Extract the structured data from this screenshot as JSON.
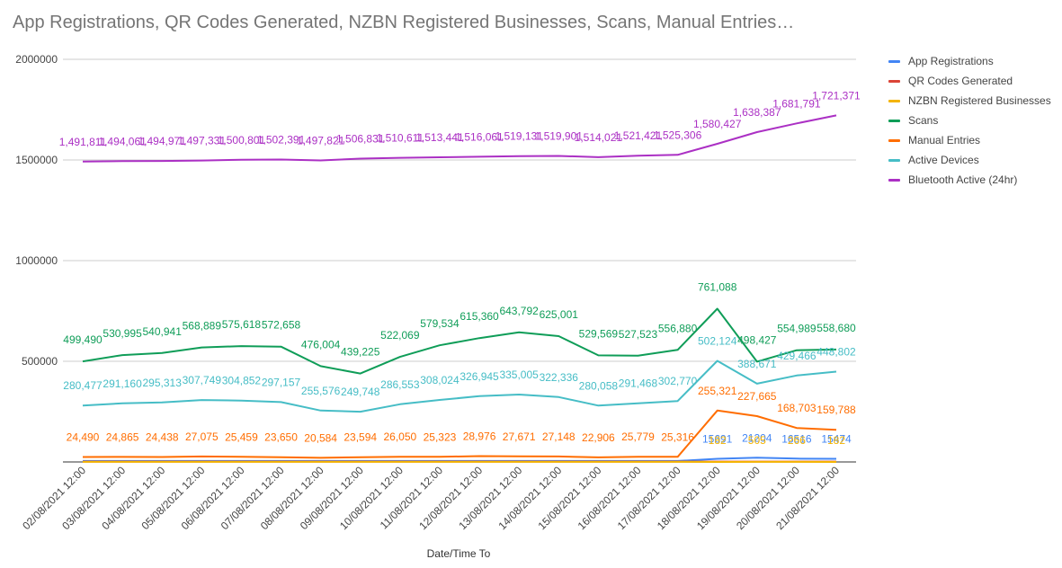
{
  "title": "App Registrations, QR Codes Generated, NZBN Registered Businesses, Scans, Manual Entries…",
  "chart_data": {
    "type": "line",
    "title": "App Registrations, QR Codes Generated, NZBN Registered Businesses, Scans, Manual Entries…",
    "xlabel": "Date/Time To",
    "ylabel": "",
    "ylim": [
      0,
      2000000
    ],
    "yticks": [
      500000,
      1000000,
      1500000,
      2000000
    ],
    "ytick_labels": [
      "500000",
      "1000000",
      "1500000",
      "2000000"
    ],
    "grid": true,
    "legend_position": "right",
    "categories": [
      "02/08/2021 12:00",
      "03/08/2021 12:00",
      "04/08/2021 12:00",
      "05/08/2021 12:00",
      "06/08/2021 12:00",
      "07/08/2021 12:00",
      "08/08/2021 12:00",
      "09/08/2021 12:00",
      "10/08/2021 12:00",
      "11/08/2021 12:00",
      "12/08/2021 12:00",
      "13/08/2021 12:00",
      "14/08/2021 12:00",
      "15/08/2021 12:00",
      "16/08/2021 12:00",
      "17/08/2021 12:00",
      "18/08/2021 12:00",
      "19/08/2021 12:00",
      "20/08/2021 12:00",
      "21/08/2021 12:00"
    ],
    "series": [
      {
        "name": "App Registrations",
        "color": "#4285f4",
        "values": [
          5000,
          5000,
          5000,
          5000,
          5000,
          5000,
          5000,
          5000,
          5000,
          5000,
          5000,
          5000,
          5000,
          5000,
          5000,
          5000,
          15691,
          21204,
          16516,
          15474
        ],
        "labels": [
          "",
          "",
          "",
          "",
          "",
          "",
          "",
          "",
          "",
          "",
          "",
          "",
          "",
          "",
          "",
          "",
          "15691",
          "21204",
          "16516",
          "15474"
        ]
      },
      {
        "name": "QR Codes Generated",
        "color": "#db4437",
        "values": [
          2000,
          2000,
          2000,
          2000,
          2000,
          2000,
          2000,
          2000,
          2000,
          2000,
          2000,
          2000,
          2000,
          2000,
          2000,
          2000,
          2000,
          2000,
          2000,
          2000
        ],
        "labels": []
      },
      {
        "name": "NZBN Registered Businesses",
        "color": "#f4b400",
        "values": [
          400,
          400,
          400,
          400,
          400,
          400,
          400,
          400,
          400,
          400,
          400,
          400,
          400,
          400,
          400,
          400,
          182,
          505,
          266,
          182
        ],
        "labels": [
          "",
          "",
          "",
          "",
          "",
          "",
          "",
          "",
          "",
          "",
          "",
          "",
          "",
          "",
          "",
          "",
          "182",
          "505",
          "266",
          "182"
        ]
      },
      {
        "name": "Scans",
        "color": "#0f9d58",
        "values": [
          499490,
          530995,
          540941,
          568889,
          575618,
          572658,
          476004,
          439225,
          522069,
          579534,
          615360,
          643792,
          625001,
          529569,
          527523,
          556880,
          761088,
          498427,
          554989,
          558680
        ],
        "labels": [
          "499,490",
          "530,995",
          "540,941",
          "568,889",
          "575,618",
          "572,658",
          "476,004",
          "439,225",
          "522,069",
          "579,534",
          "615,360",
          "643,792",
          "625,001",
          "529,569",
          "527,523",
          "556,880",
          "761,088",
          "498,427",
          "554,989",
          "558,680"
        ]
      },
      {
        "name": "Manual Entries",
        "color": "#ff6d00",
        "values": [
          24490,
          24865,
          24438,
          27075,
          25459,
          23650,
          20584,
          23594,
          26050,
          25323,
          28976,
          27671,
          27148,
          22906,
          25779,
          25316,
          255321,
          227665,
          168703,
          159788
        ],
        "labels": [
          "24,490",
          "24,865",
          "24,438",
          "27,075",
          "25,459",
          "23,650",
          "20,584",
          "23,594",
          "26,050",
          "25,323",
          "28,976",
          "27,671",
          "27,148",
          "22,906",
          "25,779",
          "25,316",
          "255,321",
          "227,665",
          "168,703",
          "159,788"
        ]
      },
      {
        "name": "Active Devices",
        "color": "#46bdc6",
        "values": [
          280477,
          291160,
          295313,
          307749,
          304852,
          297157,
          255576,
          249748,
          286553,
          308024,
          326945,
          335005,
          322336,
          280058,
          291468,
          302770,
          502124,
          388671,
          429466,
          448802
        ],
        "labels": [
          "280,477",
          "291,160",
          "295,313",
          "307,749",
          "304,852",
          "297,157",
          "255,576",
          "249,748",
          "286,553",
          "308,024",
          "326,945",
          "335,005",
          "322,336",
          "280,058",
          "291,468",
          "302,770",
          "502,124",
          "388,671",
          "429,466",
          "448,802"
        ]
      },
      {
        "name": "Bluetooth Active (24hr)",
        "color": "#ab30c4",
        "values": [
          1491811,
          1494061,
          1494971,
          1497331,
          1500801,
          1502391,
          1497821,
          1506831,
          1510611,
          1513441,
          1516061,
          1519131,
          1519901,
          1514021,
          1521421,
          1525306,
          1580427,
          1638387,
          1681791,
          1721371
        ],
        "labels": [
          "1,491,811",
          "1,494,061",
          "1,494,971",
          "1,497,331",
          "1,500,801",
          "1,502,391",
          "1,497,821",
          "1,506,831",
          "1,510,611",
          "1,513,441",
          "1,516,061",
          "1,519,131",
          "1,519,901",
          "1,514,021",
          "1,521,421",
          "1,525,306",
          "1,580,427",
          "1,638,387",
          "1,681,791",
          "1,721,371"
        ]
      }
    ]
  }
}
